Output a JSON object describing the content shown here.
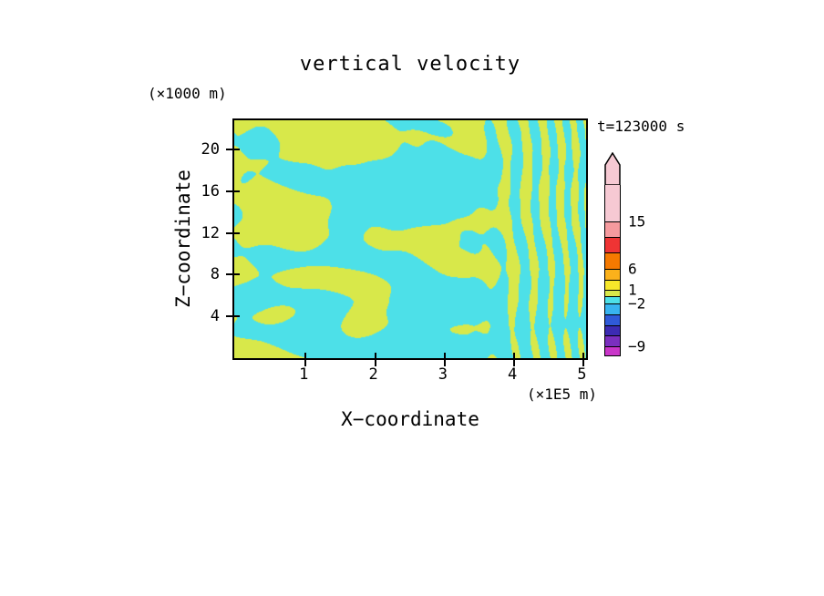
{
  "chart": {
    "title": "vertical velocity",
    "time_label": "t=123000 s",
    "x_axis": {
      "label": "X−coordinate",
      "unit": "(×1E5 m)",
      "ticks": [
        1,
        2,
        3,
        4,
        5
      ],
      "min": 0,
      "max": 5.06
    },
    "z_axis": {
      "label": "Z−coordinate",
      "unit": "(×1000 m)",
      "ticks": [
        4,
        8,
        12,
        16,
        20
      ],
      "min": 0,
      "max": 22.8
    },
    "field_colors": {
      "positive": "#D8E84A",
      "negative": "#4DE0E8"
    },
    "frame_color": "#000000",
    "colorbar": {
      "segments": [
        {
          "color": "#F6C9D3",
          "h": 40
        },
        {
          "color": "#F59A9E",
          "h": 17
        },
        {
          "color": "#EF3434",
          "h": 17
        },
        {
          "color": "#F57900",
          "h": 18
        },
        {
          "color": "#FBB11B",
          "h": 12
        },
        {
          "color": "#F7E72A",
          "h": 11
        },
        {
          "color": "#D8E84A",
          "h": 7
        },
        {
          "color": "#4DE0E8",
          "h": 8
        },
        {
          "color": "#38B4F0",
          "h": 12
        },
        {
          "color": "#2F5AD9",
          "h": 12
        },
        {
          "color": "#3C2BB3",
          "h": 11
        },
        {
          "color": "#7A2FBF",
          "h": 12
        },
        {
          "color": "#C936C9",
          "h": 10
        }
      ],
      "labels": [
        {
          "text": "15",
          "y": 40
        },
        {
          "text": "6",
          "y": 92
        },
        {
          "text": "1",
          "y": 115
        },
        {
          "text": "−2",
          "y": 130
        },
        {
          "text": "−9",
          "y": 177
        }
      ]
    }
  },
  "chart_data": {
    "type": "heatmap",
    "subtype": "filled-contour-xz-cross-section",
    "title": "vertical velocity",
    "xlabel": "X−coordinate",
    "x_unit": "(×1E5 m)",
    "ylabel": "Z−coordinate",
    "y_unit": "(×1000 m)",
    "x_ticks": [
      1,
      2,
      3,
      4,
      5
    ],
    "y_ticks": [
      4,
      8,
      12,
      16,
      20
    ],
    "xlim": [
      0,
      5.1
    ],
    "ylim": [
      0,
      22.8
    ],
    "annotation": "t=123000 s",
    "contour_level_labels": [
      15,
      6,
      1,
      -2,
      -9
    ],
    "colorbar_colors_top_to_bottom": [
      "#F6C9D3",
      "#F59A9E",
      "#EF3434",
      "#F57900",
      "#FBB11B",
      "#F7E72A",
      "#D8E84A",
      "#4DE0E8",
      "#38B4F0",
      "#2F5AD9",
      "#3C2BB3",
      "#7A2FBF",
      "#C936C9"
    ],
    "visible_field_colors": {
      "negative_band": "#4DE0E8",
      "positive_band": "#D8E84A"
    },
    "field_appearance": "turbulent interleaved cyan and yellow-green patches; fine vertical striping for x greater than about 3.5; mostly cyan band near the bottom",
    "legend_position": "right",
    "grid": false
  }
}
